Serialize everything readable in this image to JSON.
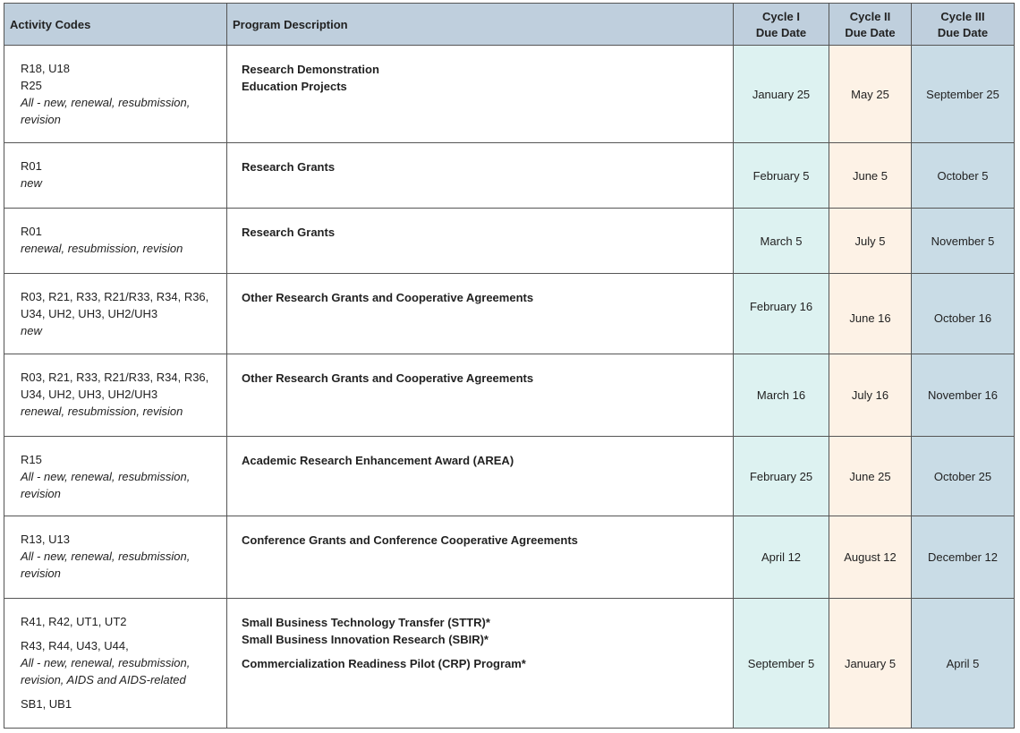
{
  "header": {
    "activity_codes": "Activity Codes",
    "program_description": "Program Description",
    "cycle1": {
      "line1": "Cycle I",
      "line2": "Due Date"
    },
    "cycle2": {
      "line1": "Cycle II",
      "line2": "Due Date"
    },
    "cycle3": {
      "line1": "Cycle III",
      "line2": "Due Date"
    }
  },
  "rows": [
    {
      "codes_a": "R18, U18",
      "codes_b": "R25",
      "scope": "All - new, renewal, resubmission, revision",
      "desc_a": "Research Demonstration",
      "desc_b": "Education Projects",
      "cycle1": "January 25",
      "cycle2": "May 25",
      "cycle3": "September 25"
    },
    {
      "codes_a": "R01",
      "scope": "new",
      "desc_a": "Research Grants",
      "cycle1": "February 5",
      "cycle2": "June 5",
      "cycle3": "October 5"
    },
    {
      "codes_a": "R01",
      "scope": "renewal, resubmission, revision",
      "desc_a": "Research Grants",
      "cycle1": "March 5",
      "cycle2": "July 5",
      "cycle3": "November 5"
    },
    {
      "codes_a": "R03, R21, R33, R21/R33, R34, R36, U34, UH2, UH3, UH2/UH3",
      "scope": "new",
      "desc_a": "Other Research Grants and Cooperative Agreements",
      "cycle1": "February 16",
      "cycle2": "June 16",
      "cycle3": "October 16"
    },
    {
      "codes_a": "R03, R21, R33, R21/R33, R34, R36, U34, UH2, UH3, UH2/UH3",
      "scope": "renewal, resubmission, revision",
      "desc_a": "Other Research Grants and Cooperative Agreements",
      "cycle1": "March 16",
      "cycle2": "July 16",
      "cycle3": "November 16"
    },
    {
      "codes_a": "R15",
      "scope": "All - new, renewal, resubmission, revision",
      "desc_a": "Academic Research Enhancement Award (AREA)",
      "cycle1": "February 25",
      "cycle2": "June 25",
      "cycle3": "October 25"
    },
    {
      "codes_a": "R13, U13",
      "scope": "All - new, renewal, resubmission, revision",
      "desc_a": "Conference Grants and Conference Cooperative Agreements",
      "cycle1": "April 12",
      "cycle2": "August 12",
      "cycle3": "December 12"
    },
    {
      "codes_a": "R41, R42, UT1, UT2",
      "codes_b": "R43, R44, U43, U44,",
      "scope": "All - new, renewal, resubmission, revision, AIDS and AIDS-related",
      "codes_c": "SB1, UB1",
      "desc_a": "Small Business Technology Transfer (STTR)*",
      "desc_b": "Small Business Innovation Research (SBIR)*",
      "desc_c": "Commercialization Readiness Pilot (CRP) Program*",
      "cycle1": "September 5",
      "cycle2": "January 5",
      "cycle3": "April 5"
    }
  ],
  "colors": {
    "header_bg": "#bfcfdd",
    "cycle1_bg": "#ddf2f1",
    "cycle2_bg": "#fdf2e6",
    "cycle3_bg": "#c9dce6"
  }
}
